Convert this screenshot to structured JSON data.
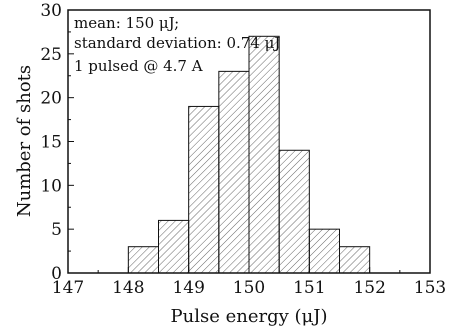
{
  "chart_data": {
    "type": "bar",
    "xlabel": "Pulse energy (μJ)",
    "ylabel": "Number of shots",
    "xlim": [
      147,
      153
    ],
    "ylim": [
      0,
      30
    ],
    "xticks": [
      "147",
      "148",
      "149",
      "150",
      "151",
      "152",
      "153"
    ],
    "yticks": [
      "0",
      "5",
      "10",
      "15",
      "20",
      "25",
      "30"
    ],
    "bin_edges": [
      148,
      148.5,
      149,
      149.5,
      150,
      150.5,
      151,
      151.5,
      152
    ],
    "values": [
      3,
      6,
      19,
      23,
      27,
      14,
      5,
      3
    ],
    "bar_fill": "hatched diagonal",
    "annotations": [
      "mean: 150 μJ;",
      "standard deviation: 0.74 μJ",
      "1 pulsed @ 4.7 A"
    ]
  }
}
